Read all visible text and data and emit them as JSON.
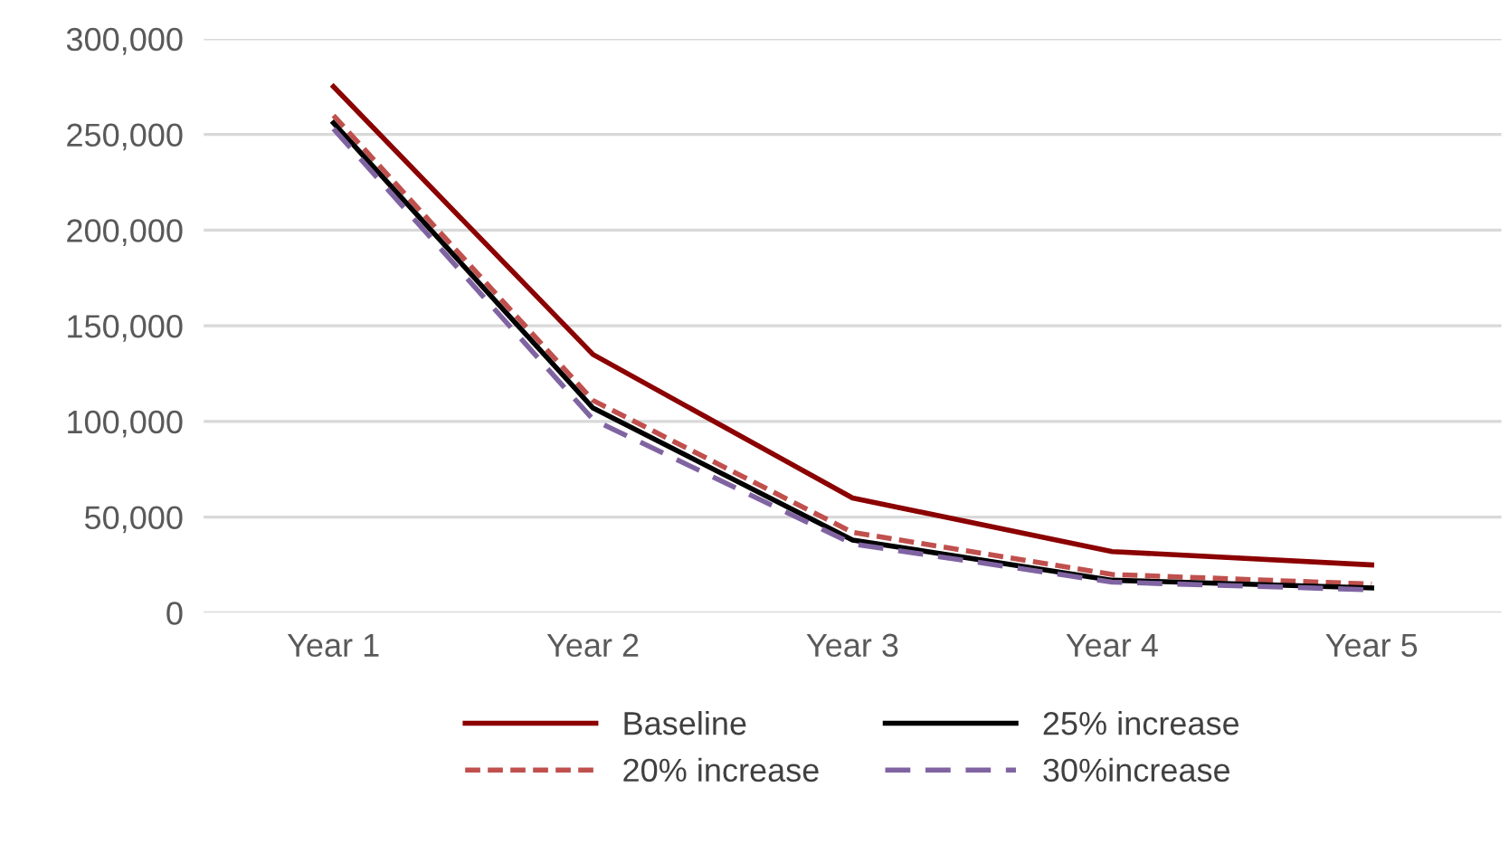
{
  "chart_data": {
    "type": "line",
    "categories": [
      "Year 1",
      "Year 2",
      "Year 3",
      "Year 4",
      "Year 5"
    ],
    "series": [
      {
        "name": "Baseline",
        "color": "#8b0000",
        "line_style": "solid",
        "values": [
          275000,
          135000,
          60000,
          32000,
          25000
        ]
      },
      {
        "name": "20% increase",
        "color": "#c0504d",
        "line_style": "dashed",
        "values": [
          260000,
          111000,
          42000,
          20000,
          15000
        ]
      },
      {
        "name": "25% increase",
        "color": "#000000",
        "line_style": "solid",
        "values": [
          256000,
          107000,
          38000,
          17000,
          13000
        ]
      },
      {
        "name": "30%increase",
        "color": "#8064a2",
        "line_style": "dashed",
        "values": [
          253000,
          101000,
          36000,
          16000,
          12000
        ]
      }
    ],
    "ylim": [
      0,
      300000
    ],
    "yticks": [
      {
        "value": 0,
        "label": "0"
      },
      {
        "value": 50000,
        "label": "50,000"
      },
      {
        "value": 100000,
        "label": "100,000"
      },
      {
        "value": 150000,
        "label": "150,000"
      },
      {
        "value": 200000,
        "label": "200,000"
      },
      {
        "value": 250000,
        "label": "250,000"
      },
      {
        "value": 300000,
        "label": "300,000"
      }
    ],
    "grid": "y",
    "legend": "bottom",
    "marker": "none"
  }
}
